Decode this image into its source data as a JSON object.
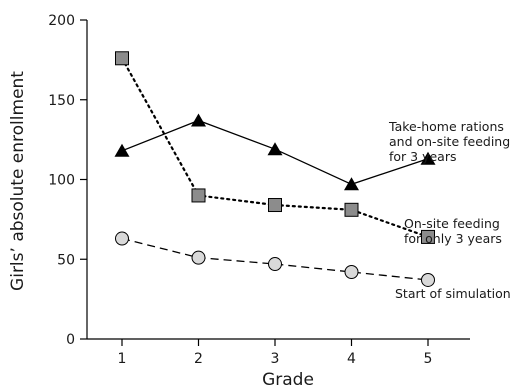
{
  "chart_data": {
    "type": "line",
    "xlabel": "Grade",
    "ylabel": "Girls’ absolute enrollment",
    "x": [
      1,
      2,
      3,
      4,
      5
    ],
    "xticks": [
      "1",
      "2",
      "3",
      "4",
      "5"
    ],
    "ylim": [
      0,
      200
    ],
    "yticks": [
      "0",
      "50",
      "100",
      "150",
      "200"
    ],
    "grid": false,
    "legend": "none",
    "series": [
      {
        "name": "Take-home rations and on-site feeding for 3 years",
        "label_lines": [
          "Take-home rations",
          "and on-site feeding",
          "for 3 years"
        ],
        "values": [
          118,
          137,
          119,
          97,
          113
        ],
        "marker": "triangle",
        "line": "solid",
        "color": "#000000"
      },
      {
        "name": "On-site feeding for only 3 years",
        "label_lines": [
          "On-site feeding",
          "for only 3 years"
        ],
        "values": [
          176,
          90,
          84,
          81,
          64
        ],
        "marker": "square",
        "line": "dotted",
        "color": "#8c8c8c"
      },
      {
        "name": "Start of simulation",
        "label_lines": [
          "Start of simulation"
        ],
        "values": [
          63,
          51,
          47,
          42,
          37
        ],
        "marker": "circle",
        "line": "dashed",
        "color": "#d9d9d9"
      }
    ]
  }
}
